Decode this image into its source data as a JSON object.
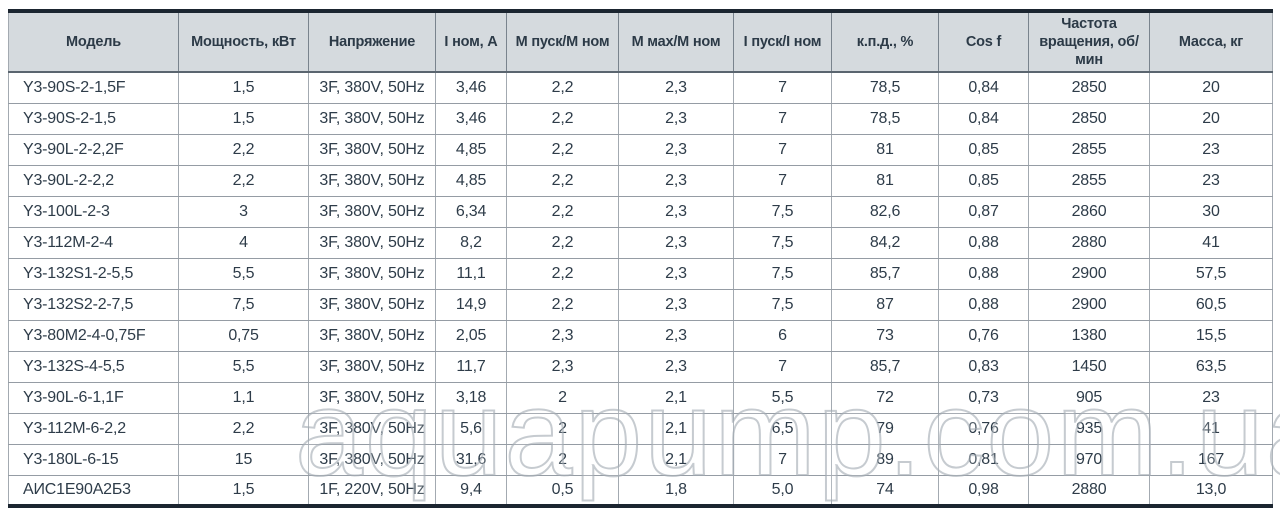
{
  "watermark": {
    "text": "aquapump.com.ua"
  },
  "colors": {
    "header_bg": "#d5dade",
    "text": "#2e3c49",
    "outer_border": "#1b2530",
    "grid_border": "#a3aab1",
    "header_separator": "#5a656f"
  },
  "table": {
    "headers": [
      "Модель",
      "Мощность, кВт",
      "Напряжение",
      "I ном, А",
      "М пуск/М ном",
      "М мах/М ном",
      "I пуск/I ном",
      "к.п.д., %",
      "Cos f",
      "Частота вращения, об/мин",
      "Масса, кг"
    ],
    "rows": [
      [
        "Y3-90S-2-1,5F",
        "1,5",
        "3F, 380V, 50Hz",
        "3,46",
        "2,2",
        "2,3",
        "7",
        "78,5",
        "0,84",
        "2850",
        "20"
      ],
      [
        "Y3-90S-2-1,5",
        "1,5",
        "3F, 380V, 50Hz",
        "3,46",
        "2,2",
        "2,3",
        "7",
        "78,5",
        "0,84",
        "2850",
        "20"
      ],
      [
        "Y3-90L-2-2,2F",
        "2,2",
        "3F, 380V, 50Hz",
        "4,85",
        "2,2",
        "2,3",
        "7",
        "81",
        "0,85",
        "2855",
        "23"
      ],
      [
        "Y3-90L-2-2,2",
        "2,2",
        "3F, 380V, 50Hz",
        "4,85",
        "2,2",
        "2,3",
        "7",
        "81",
        "0,85",
        "2855",
        "23"
      ],
      [
        "Y3-100L-2-3",
        "3",
        "3F, 380V, 50Hz",
        "6,34",
        "2,2",
        "2,3",
        "7,5",
        "82,6",
        "0,87",
        "2860",
        "30"
      ],
      [
        "Y3-112M-2-4",
        "4",
        "3F, 380V, 50Hz",
        "8,2",
        "2,2",
        "2,3",
        "7,5",
        "84,2",
        "0,88",
        "2880",
        "41"
      ],
      [
        "Y3-132S1-2-5,5",
        "5,5",
        "3F, 380V, 50Hz",
        "11,1",
        "2,2",
        "2,3",
        "7,5",
        "85,7",
        "0,88",
        "2900",
        "57,5"
      ],
      [
        "Y3-132S2-2-7,5",
        "7,5",
        "3F, 380V, 50Hz",
        "14,9",
        "2,2",
        "2,3",
        "7,5",
        "87",
        "0,88",
        "2900",
        "60,5"
      ],
      [
        "Y3-80M2-4-0,75F",
        "0,75",
        "3F, 380V, 50Hz",
        "2,05",
        "2,3",
        "2,3",
        "6",
        "73",
        "0,76",
        "1380",
        "15,5"
      ],
      [
        "Y3-132S-4-5,5",
        "5,5",
        "3F, 380V, 50Hz",
        "11,7",
        "2,3",
        "2,3",
        "7",
        "85,7",
        "0,83",
        "1450",
        "63,5"
      ],
      [
        "Y3-90L-6-1,1F",
        "1,1",
        "3F, 380V, 50Hz",
        "3,18",
        "2",
        "2,1",
        "5,5",
        "72",
        "0,73",
        "905",
        "23"
      ],
      [
        "Y3-112M-6-2,2",
        "2,2",
        "3F, 380V, 50Hz",
        "5,6",
        "2",
        "2,1",
        "6,5",
        "79",
        "0,76",
        "935",
        "41"
      ],
      [
        "Y3-180L-6-15",
        "15",
        "3F, 380V, 50Hz",
        "31,6",
        "2",
        "2,1",
        "7",
        "89",
        "0,81",
        "970",
        "167"
      ],
      [
        "АИС1Е90А2Б3",
        "1,5",
        "1F, 220V, 50Hz",
        "9,4",
        "0,5",
        "1,8",
        "5,0",
        "74",
        "0,98",
        "2880",
        "13,0"
      ]
    ]
  }
}
